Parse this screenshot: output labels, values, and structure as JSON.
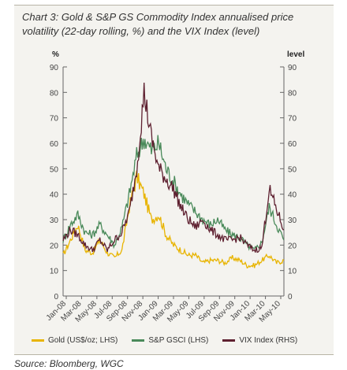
{
  "title": "Chart 3: Gold & S&P GS Commodity Index annualised price volatility (22-day rolling, %) and the VIX Index (level)",
  "source": "Source: Bloomberg, WGC",
  "chart_data": {
    "type": "line",
    "left_unit": "%",
    "right_unit": "level",
    "ylim_left": [
      0,
      90
    ],
    "ylim_right": [
      0,
      90
    ],
    "yticks": [
      0,
      10,
      20,
      30,
      40,
      50,
      60,
      70,
      80,
      90
    ],
    "xticks": [
      "Jan-08",
      "Mar-08",
      "May-08",
      "Jul-08",
      "Sep-08",
      "Nov-08",
      "Jan-09",
      "Mar-09",
      "May-09",
      "Jul-09",
      "Sep-09",
      "Nov-09",
      "Jan-10",
      "Mar-10",
      "May-10"
    ],
    "x_range": [
      0,
      30
    ],
    "x": [
      0,
      1,
      2,
      3,
      4,
      5,
      6,
      7,
      8,
      9,
      10,
      11,
      12,
      13,
      14,
      15,
      16,
      17,
      18,
      19,
      20,
      21,
      22,
      23,
      24,
      25,
      26,
      27,
      28,
      29,
      30
    ],
    "series": [
      {
        "name": "Gold (US$/oz; LHS)",
        "color": "#e8b400",
        "axis": "left",
        "values": [
          16,
          22,
          28,
          18,
          17,
          22,
          17,
          15,
          18,
          35,
          47,
          40,
          30,
          32,
          24,
          20,
          18,
          16,
          16,
          13,
          14,
          14,
          13,
          15,
          14,
          12,
          12,
          14,
          16,
          13,
          14
        ]
      },
      {
        "name": "S&P GSCI (LHS)",
        "color": "#4a8a5a",
        "axis": "left",
        "values": [
          22,
          28,
          32,
          25,
          24,
          28,
          24,
          20,
          27,
          40,
          55,
          62,
          57,
          60,
          50,
          45,
          40,
          36,
          33,
          30,
          28,
          30,
          26,
          24,
          23,
          20,
          18,
          21,
          35,
          28,
          22
        ]
      },
      {
        "name": "VIX Index (RHS)",
        "color": "#5e2030",
        "axis": "right",
        "values": [
          22,
          26,
          24,
          20,
          18,
          22,
          18,
          22,
          25,
          33,
          50,
          80,
          62,
          50,
          46,
          42,
          35,
          30,
          27,
          30,
          26,
          24,
          22,
          22,
          23,
          20,
          18,
          19,
          42,
          34,
          26
        ]
      }
    ]
  }
}
